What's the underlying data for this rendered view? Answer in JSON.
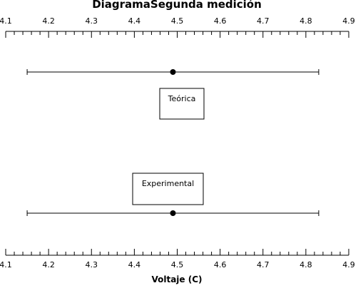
{
  "chart_data": {
    "type": "errorbar",
    "title": "DiagramaSegunda medición",
    "xlabel": "Voltaje (C)",
    "xlim": [
      4.1,
      4.9
    ],
    "tick_labels": [
      "4.1",
      "4.2",
      "4.3",
      "4.4",
      "4.5",
      "4.6",
      "4.7",
      "4.8",
      "4.9"
    ],
    "minor_ticks_per_major": 5,
    "series": [
      {
        "name": "Teórica",
        "center": 4.49,
        "lower": 4.15,
        "upper": 4.83
      },
      {
        "name": "Experimental",
        "center": 4.49,
        "lower": 4.15,
        "upper": 4.83
      }
    ],
    "color": "#000000"
  }
}
